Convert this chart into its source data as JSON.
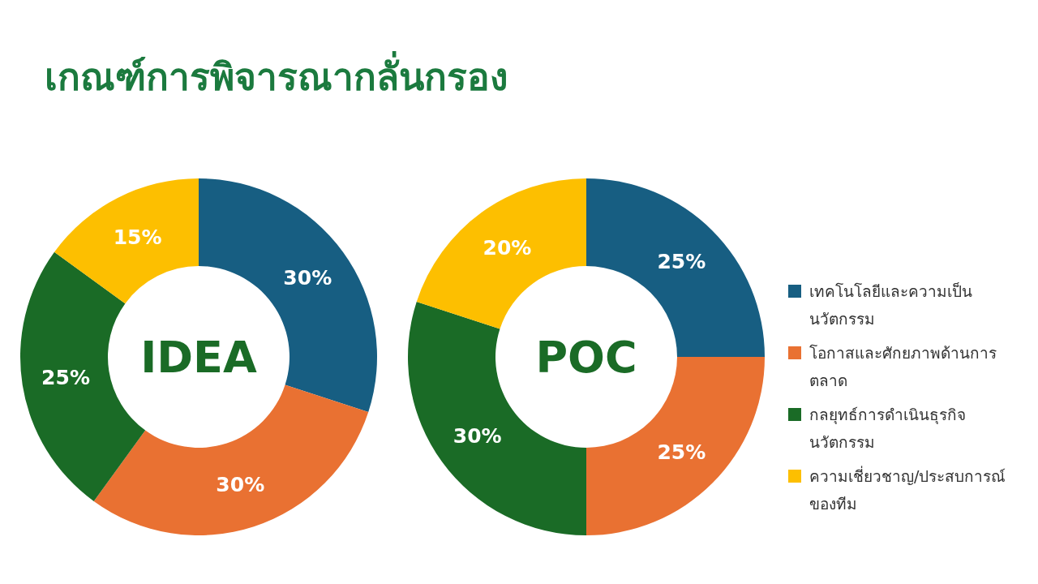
{
  "chart_data": [
    {
      "type": "donut",
      "title": "เกณฑ์การพิจารณากลั่นกรอง",
      "annotations": [
        "IDEA"
      ],
      "categories": [
        null,
        null,
        null,
        null
      ],
      "values": [
        30,
        30,
        25,
        15
      ],
      "value_labels": [
        "30%",
        "30%",
        "25%",
        "15%"
      ],
      "colors": [
        "#175e82",
        "#e97132",
        "#1a6b26",
        "#fdbf00"
      ]
    },
    {
      "type": "donut",
      "annotations": [
        "POC"
      ],
      "categories": [
        "เทคโนโลยีและความเป็นนวัตกรรม",
        "โอกาสและศักยภาพด้านการตลาด",
        "กลยุทธ์การดำเนินธุรกิจนวัตกรรม",
        "ความเชี่ยวชาญ/ประสบการณ์ของทีม"
      ],
      "values": [
        25,
        25,
        30,
        20
      ],
      "value_labels": [
        "25%",
        "25%",
        "30%",
        "20%"
      ],
      "colors": [
        "#175e82",
        "#e97132",
        "#1a6b26",
        "#fdbf00"
      ],
      "legend": "right"
    }
  ]
}
